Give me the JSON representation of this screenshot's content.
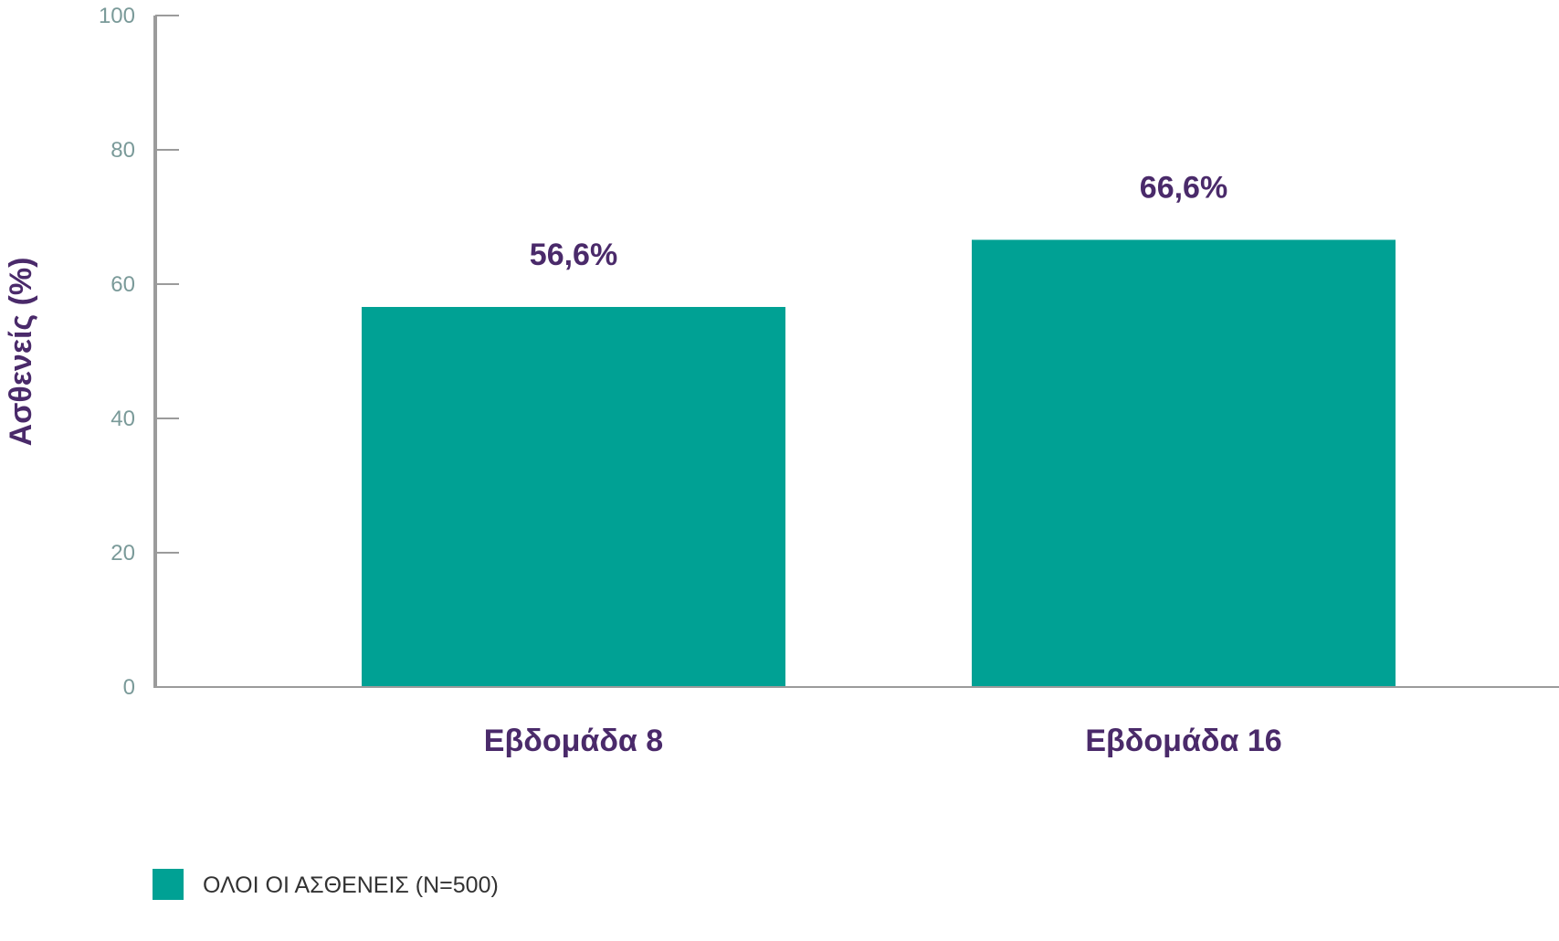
{
  "chart_data": {
    "type": "bar",
    "title": "",
    "xlabel": "",
    "ylabel": "Ασθενείς (%)",
    "ylim": [
      0,
      100
    ],
    "yticks": [
      0,
      20,
      40,
      60,
      80,
      100
    ],
    "categories": [
      "Εβδομάδα 8",
      "Εβδομάδα 16"
    ],
    "series": [
      {
        "name": "ΟΛΟΙ ΟΙ ΑΣΘΕΝΕΙΣ (Ν=500)",
        "values": [
          56.6,
          66.6
        ],
        "data_labels": [
          "56,6%",
          "66,6%"
        ],
        "color": "#00a194"
      }
    ],
    "grid": false,
    "legend": "bottom-left",
    "colors": {
      "bar": "#00a194",
      "axis": "#9b9b9b",
      "tick_text": "#7a9a99",
      "label_text": "#4a2a6a"
    }
  }
}
